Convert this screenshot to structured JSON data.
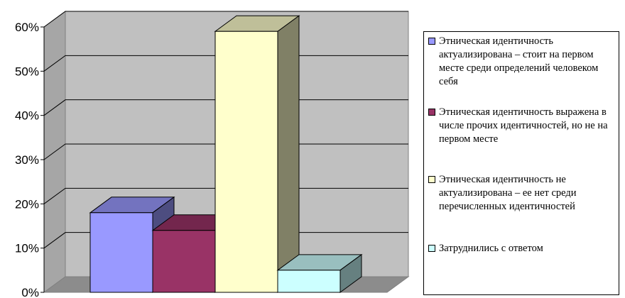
{
  "chart_data": {
    "type": "bar",
    "three_d": true,
    "y_ticks": [
      "0%",
      "10%",
      "20%",
      "30%",
      "40%",
      "50%",
      "60%"
    ],
    "ylim": [
      0,
      60
    ],
    "grid": true,
    "legend_position": "right",
    "series": [
      {
        "name": "Этническая идентичность актуализирована – стоит на первом месте среди определений человеком себя",
        "value": 18,
        "color": "#9999ff"
      },
      {
        "name": "Этническая идентичность выражена в числе прочих идентичностей, но не на первом месте",
        "value": 14,
        "color": "#993366"
      },
      {
        "name": "Этническая идентичность не актуализирована – ее нет среди перечисленных идентичностей",
        "value": 59,
        "color": "#ffffcc"
      },
      {
        "name": "Затруднились с ответом",
        "value": 5,
        "color": "#ccffff"
      }
    ],
    "wall_color": "#c0c0c0"
  }
}
